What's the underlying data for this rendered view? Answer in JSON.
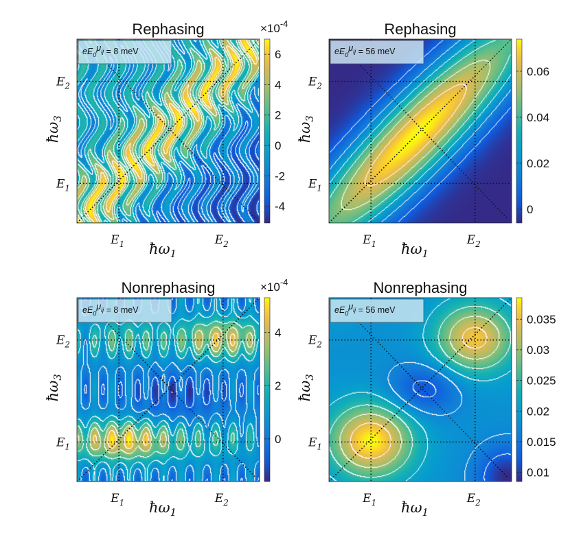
{
  "chart_data": [
    {
      "type": "heatmap",
      "title": "Rephasing",
      "xlabel": "ħω",
      "xlabel_sub": "1",
      "ylabel": "ħω",
      "ylabel_sub": "3",
      "x_ticks": [
        {
          "main": "E",
          "sub": "1"
        },
        {
          "main": "E",
          "sub": "2"
        }
      ],
      "y_ticks": [
        {
          "main": "E",
          "sub": "2"
        },
        {
          "main": "E",
          "sub": "1"
        }
      ],
      "annotation": {
        "prefix": "eE",
        "sub0": "0",
        "mu": "μ",
        "subij": "ij",
        "text": " =  8 meV"
      },
      "colorbar": {
        "exponent_base": "×10",
        "exponent": "-4",
        "ticks": [
          "6",
          "4",
          "2",
          "0",
          "-2",
          "-4"
        ],
        "tick_values": [
          6,
          4,
          2,
          0,
          -2,
          -4
        ],
        "lim": [
          -5.1,
          7
        ]
      },
      "pattern": "oscillating-diagonal"
    },
    {
      "type": "heatmap",
      "title": "Rephasing",
      "xlabel": "ħω",
      "xlabel_sub": "1",
      "ylabel": "ħω",
      "ylabel_sub": "3",
      "x_ticks": [
        {
          "main": "E",
          "sub": "1"
        },
        {
          "main": "E",
          "sub": "2"
        }
      ],
      "y_ticks": [
        {
          "main": "E",
          "sub": "2"
        },
        {
          "main": "E",
          "sub": "1"
        }
      ],
      "annotation": {
        "prefix": "eE",
        "sub0": "0",
        "mu": "μ",
        "subij": "ij",
        "text": " =  56 meV"
      },
      "colorbar": {
        "exponent_base": "",
        "exponent": "",
        "ticks": [
          "0.06",
          "0.04",
          "0.02",
          "0"
        ],
        "tick_values": [
          0.06,
          0.04,
          0.02,
          0
        ],
        "lim": [
          -0.006,
          0.074
        ]
      },
      "pattern": "smooth-diagonal"
    },
    {
      "type": "heatmap",
      "title": "Nonrephasing",
      "xlabel": "ħω",
      "xlabel_sub": "1",
      "ylabel": "ħω",
      "ylabel_sub": "3",
      "x_ticks": [
        {
          "main": "E",
          "sub": "1"
        },
        {
          "main": "E",
          "sub": "2"
        }
      ],
      "y_ticks": [
        {
          "main": "E",
          "sub": "2"
        },
        {
          "main": "E",
          "sub": "1"
        }
      ],
      "annotation": {
        "prefix": "eE",
        "sub0": "0",
        "mu": "μ",
        "subij": "ij",
        "text": " =  8 meV"
      },
      "colorbar": {
        "exponent_base": "×10",
        "exponent": "-4",
        "ticks": [
          "4",
          "2",
          "0"
        ],
        "tick_values": [
          4,
          2,
          0
        ],
        "lim": [
          -1.6,
          5.3
        ]
      },
      "pattern": "oscillating-peaks"
    },
    {
      "type": "heatmap",
      "title": "Nonrephasing",
      "xlabel": "ħω",
      "xlabel_sub": "1",
      "ylabel": "ħω",
      "ylabel_sub": "3",
      "x_ticks": [
        {
          "main": "E",
          "sub": "1"
        },
        {
          "main": "E",
          "sub": "2"
        }
      ],
      "y_ticks": [
        {
          "main": "E",
          "sub": "2"
        },
        {
          "main": "E",
          "sub": "1"
        }
      ],
      "annotation": {
        "prefix": "eE",
        "sub0": "0",
        "mu": "μ",
        "subij": "ij",
        "text": " =  56 meV"
      },
      "colorbar": {
        "exponent_base": "",
        "exponent": "",
        "ticks": [
          "0.035",
          "0.03",
          "0.025",
          "0.02",
          "0.015",
          "0.01"
        ],
        "tick_values": [
          0.035,
          0.03,
          0.025,
          0.02,
          0.015,
          0.01
        ],
        "lim": [
          0.0085,
          0.0385
        ]
      },
      "pattern": "two-diagonal-peaks"
    }
  ]
}
